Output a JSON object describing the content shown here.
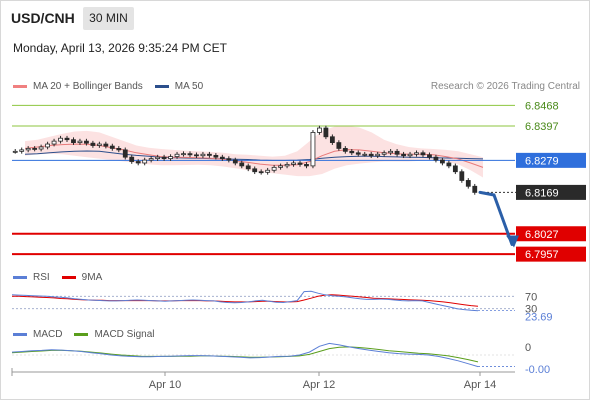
{
  "header": {
    "symbol": "USD/CNH",
    "timeframe": "30 MIN",
    "datetime": "Monday, April 13, 2026 9:35:24 PM CET"
  },
  "legend_main": [
    {
      "label": "MA 20 + Bollinger Bands",
      "color": "#f08080"
    },
    {
      "label": "MA 50",
      "color": "#2c4f8c"
    }
  ],
  "research": "Research © 2026 Trading Central",
  "levels": [
    {
      "value": "6.8468",
      "type": "resistance",
      "color": "#8dc63f",
      "text_color": "#4a8a1a",
      "style": "plain"
    },
    {
      "value": "6.8397",
      "type": "resistance",
      "color": "#8dc63f",
      "text_color": "#4a8a1a",
      "style": "plain"
    },
    {
      "value": "6.8279",
      "type": "pivot",
      "color": "#2f6fdc",
      "text_color": "#ffffff",
      "style": "badge"
    },
    {
      "value": "6.8169",
      "type": "last",
      "color": "#2a2a2a",
      "text_color": "#ffffff",
      "style": "badge"
    },
    {
      "value": "6.8027",
      "type": "support",
      "color": "#e00000",
      "text_color": "#ffffff",
      "style": "badge"
    },
    {
      "value": "6.7957",
      "type": "support",
      "color": "#e00000",
      "text_color": "#ffffff",
      "style": "badge"
    }
  ],
  "rsi": {
    "legend": [
      {
        "label": "RSI",
        "color": "#5b7fd6"
      },
      {
        "label": "9MA",
        "color": "#e00000"
      }
    ],
    "ticks": [
      "70",
      "30"
    ],
    "value": "23.69"
  },
  "macd": {
    "legend": [
      {
        "label": "MACD",
        "color": "#5b7fd6"
      },
      {
        "label": "MACD Signal",
        "color": "#5a9e1c"
      }
    ],
    "ticks": [
      "0"
    ],
    "value": "-0.00"
  },
  "x_axis": [
    "Apr 10",
    "Apr 12",
    "Apr 14"
  ],
  "chart_data": {
    "type": "candlestick",
    "title": "USD/CNH",
    "timeframe": "30 MIN",
    "ylim": [
      6.793,
      6.85
    ],
    "x_labels": [
      "Apr 10",
      "Apr 12",
      "Apr 14"
    ],
    "close_series": [
      6.831,
      6.8315,
      6.832,
      6.8318,
      6.8325,
      6.8335,
      6.8345,
      6.8355,
      6.835,
      6.834,
      6.8345,
      6.8338,
      6.833,
      6.8335,
      6.8328,
      6.832,
      6.8315,
      6.829,
      6.8275,
      6.827,
      6.828,
      6.8285,
      6.829,
      6.8285,
      6.8292,
      6.83,
      6.8302,
      6.8298,
      6.8295,
      6.83,
      6.8296,
      6.829,
      6.8285,
      6.828,
      6.827,
      6.826,
      6.825,
      6.824,
      6.8238,
      6.8245,
      6.8255,
      6.826,
      6.8265,
      6.827,
      6.8265,
      6.826,
      6.8375,
      6.839,
      6.836,
      6.834,
      6.832,
      6.831,
      6.8305,
      6.83,
      6.83,
      6.8295,
      6.83,
      6.8305,
      6.831,
      6.83,
      6.8295,
      6.83,
      6.8305,
      6.8298,
      6.829,
      6.828,
      6.827,
      6.826,
      6.824,
      6.821,
      6.819,
      6.8169
    ],
    "ma20": [
      6.832,
      6.8325,
      6.833,
      6.8333,
      6.8335,
      6.8334,
      6.833,
      6.8322,
      6.8315,
      6.8305,
      6.8298,
      6.8292,
      6.829,
      6.8289,
      6.8288,
      6.8286,
      6.8283,
      6.8278,
      6.8272,
      6.8266,
      6.8262,
      6.8262,
      6.8264,
      6.8275,
      6.8295,
      6.831,
      6.8316,
      6.8315,
      6.831,
      6.8305,
      6.8302,
      6.83,
      6.83,
      6.8298,
      6.8292,
      6.8284,
      6.827,
      6.8255
    ],
    "ma50": [
      6.83,
      6.8302,
      6.8305,
      6.8308,
      6.831,
      6.8311,
      6.831,
      6.8305,
      6.83,
      6.8296,
      6.8293,
      6.829,
      6.8288,
      6.8287,
      6.8286,
      6.8285,
      6.8284,
      6.8283,
      6.8282,
      6.828,
      6.8279,
      6.8279,
      6.828,
      6.8282,
      6.8286,
      6.829,
      6.8292,
      6.8293,
      6.8293,
      6.8292,
      6.8291,
      6.829,
      6.8289,
      6.8288,
      6.8287,
      6.8286,
      6.8285,
      6.8284
    ],
    "bb_upper": [
      6.8345,
      6.835,
      6.836,
      6.837,
      6.8378,
      6.838,
      6.8375,
      6.836,
      6.8345,
      6.833,
      6.8322,
      6.8318,
      6.8315,
      6.8312,
      6.831,
      6.8308,
      6.8305,
      6.83,
      6.8298,
      6.8295,
      6.8292,
      6.8295,
      6.831,
      6.8345,
      6.838,
      6.8395,
      6.8398,
      6.8392,
      6.8375,
      6.835,
      6.8335,
      6.8325,
      6.832,
      6.8318,
      6.8315,
      6.831,
      6.83,
      6.829
    ],
    "bb_lower": [
      6.8295,
      6.83,
      6.8302,
      6.83,
      6.8295,
      6.829,
      6.8285,
      6.828,
      6.8275,
      6.827,
      6.8265,
      6.8262,
      6.8262,
      6.8263,
      6.8264,
      6.8262,
      6.8258,
      6.8252,
      6.8245,
      6.824,
      6.8235,
      6.823,
      6.8225,
      6.8225,
      6.8232,
      6.825,
      6.8262,
      6.8268,
      6.8272,
      6.8275,
      6.8275,
      6.8275,
      6.8278,
      6.828,
      6.8275,
      6.8265,
      6.8245,
      6.822
    ],
    "forecast": [
      6.8169,
      6.816,
      6.799
    ],
    "rsi_series": [
      75,
      74,
      73,
      72,
      71,
      70,
      68,
      67,
      65,
      62,
      60,
      58,
      57,
      56,
      55,
      55,
      56,
      57,
      58,
      57,
      56,
      55,
      54,
      55,
      56,
      57,
      58,
      57,
      56,
      55,
      52,
      50,
      49,
      50,
      52,
      55,
      57,
      54,
      51,
      50,
      53,
      56,
      85,
      86,
      80,
      75,
      72,
      70,
      68,
      65,
      62,
      60,
      60,
      61,
      60,
      58,
      56,
      55,
      56,
      55,
      50,
      45,
      40,
      35,
      30,
      27,
      25,
      23.69
    ],
    "rsi_ma": [
      70,
      70,
      69,
      68,
      67,
      66,
      65,
      63,
      62,
      60,
      59,
      58,
      57,
      57,
      56,
      56,
      56,
      56,
      56,
      56,
      56,
      55,
      55,
      55,
      56,
      56,
      56,
      56,
      55,
      55,
      54,
      53,
      52,
      52,
      52,
      53,
      54,
      54,
      53,
      52,
      52,
      53,
      58,
      64,
      70,
      74,
      75,
      74,
      72,
      70,
      68,
      66,
      64,
      63,
      62,
      61,
      60,
      59,
      58,
      57,
      56,
      54,
      52,
      49,
      46,
      43,
      40,
      38
    ],
    "macd_series": [
      0.001,
      0.0012,
      0.0015,
      0.0016,
      0.0018,
      0.0017,
      0.0015,
      0.0012,
      0.0008,
      0.0004,
      0.0,
      -0.0003,
      -0.0005,
      -0.0006,
      -0.0006,
      -0.0005,
      -0.0004,
      -0.0003,
      -0.0002,
      -0.0002,
      -0.0003,
      -0.0004,
      -0.0006,
      -0.0008,
      -0.001,
      -0.0009,
      -0.0007,
      -0.0005,
      -0.0004,
      0.0,
      0.001,
      0.003,
      0.004,
      0.0035,
      0.0028,
      0.0022,
      0.0017,
      0.0012,
      0.0008,
      0.0005,
      0.0003,
      0.0002,
      0.0,
      -0.0005,
      -0.0012,
      -0.002,
      -0.003,
      -0.004
    ],
    "macd_signal": [
      0.0008,
      0.001,
      0.0012,
      0.0014,
      0.0016,
      0.0016,
      0.0015,
      0.0013,
      0.001,
      0.0007,
      0.0003,
      0.0,
      -0.0002,
      -0.0004,
      -0.0005,
      -0.0005,
      -0.0005,
      -0.0004,
      -0.0004,
      -0.0003,
      -0.0003,
      -0.0004,
      -0.0005,
      -0.0006,
      -0.0008,
      -0.0008,
      -0.0007,
      -0.0006,
      -0.0005,
      -0.0003,
      0.0002,
      0.0012,
      0.0022,
      0.0027,
      0.0028,
      0.0026,
      0.0023,
      0.0019,
      0.0015,
      0.0012,
      0.0009,
      0.0006,
      0.0004,
      0.0001,
      -0.0003,
      -0.0009,
      -0.0016,
      -0.0024
    ]
  }
}
